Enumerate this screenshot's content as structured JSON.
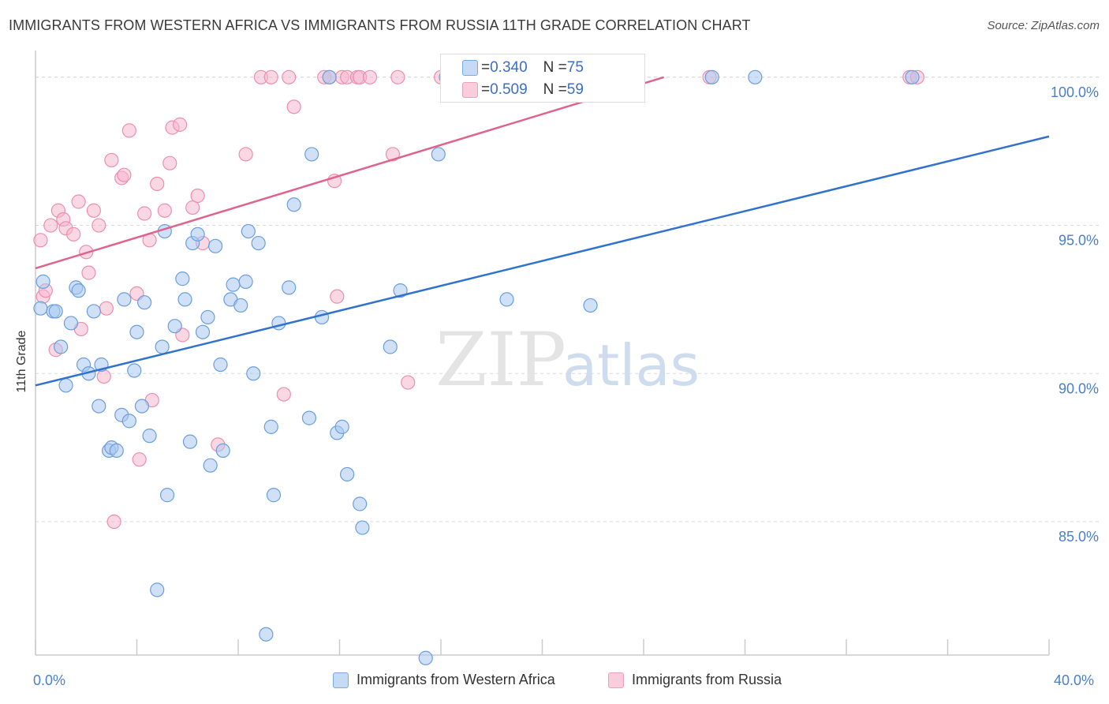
{
  "header": {
    "title": "IMMIGRANTS FROM WESTERN AFRICA VS IMMIGRANTS FROM RUSSIA 11TH GRADE CORRELATION CHART",
    "source": "Source: ZipAtlas.com"
  },
  "watermark": {
    "zip": "ZIP",
    "atlas": "atlas"
  },
  "colors": {
    "blue_fill": "#a9c8f0",
    "blue_stroke": "#6a9edf",
    "blue_line": "#2f72cf",
    "pink_fill": "#f6b8cc",
    "pink_stroke": "#ec8fae",
    "pink_line": "#e0638e",
    "grid": "#d8d8d8",
    "tick_label": "#4a7fc9"
  },
  "stats_legend": [
    {
      "r_label": "R = ",
      "r_value": "0.340",
      "n_label": "N = ",
      "n_value": "75"
    },
    {
      "r_label": "R = ",
      "r_value": "0.509",
      "n_label": "N = ",
      "n_value": "59"
    }
  ],
  "chart_data": {
    "type": "scatter",
    "ylabel": "11th Grade",
    "xlabel": "",
    "xlim": [
      0,
      40
    ],
    "ylim": [
      80.5,
      100.9
    ],
    "x_tick_labels": [
      "0.0%",
      "40.0%"
    ],
    "y_ticks": [
      85,
      90,
      95,
      100
    ],
    "y_tick_labels": [
      "85.0%",
      "90.0%",
      "95.0%",
      "100.0%"
    ],
    "grid": true,
    "legend_position": "bottom-center",
    "series": [
      {
        "name": "Immigrants from Western Africa",
        "trend": {
          "x": [
            0,
            40
          ],
          "y": [
            89.6,
            98.0
          ]
        },
        "points": [
          [
            0.2,
            92.2
          ],
          [
            0.3,
            93.1
          ],
          [
            0.7,
            92.1
          ],
          [
            0.8,
            92.1
          ],
          [
            1.0,
            90.9
          ],
          [
            1.2,
            89.6
          ],
          [
            1.4,
            91.7
          ],
          [
            1.6,
            92.9
          ],
          [
            1.7,
            92.8
          ],
          [
            1.9,
            90.3
          ],
          [
            2.1,
            90.0
          ],
          [
            2.3,
            92.1
          ],
          [
            2.5,
            88.9
          ],
          [
            2.6,
            90.3
          ],
          [
            2.9,
            87.4
          ],
          [
            3.0,
            87.5
          ],
          [
            3.2,
            87.4
          ],
          [
            3.4,
            88.6
          ],
          [
            3.5,
            92.5
          ],
          [
            3.7,
            88.4
          ],
          [
            3.9,
            90.1
          ],
          [
            4.0,
            91.4
          ],
          [
            4.2,
            88.9
          ],
          [
            4.3,
            92.4
          ],
          [
            4.5,
            87.9
          ],
          [
            4.8,
            82.7
          ],
          [
            5.0,
            90.9
          ],
          [
            5.1,
            94.8
          ],
          [
            5.2,
            85.9
          ],
          [
            5.5,
            91.6
          ],
          [
            5.8,
            93.2
          ],
          [
            5.9,
            92.5
          ],
          [
            6.1,
            87.7
          ],
          [
            6.2,
            94.4
          ],
          [
            6.4,
            94.7
          ],
          [
            6.6,
            91.4
          ],
          [
            6.8,
            91.9
          ],
          [
            6.9,
            86.9
          ],
          [
            7.1,
            94.3
          ],
          [
            7.3,
            90.3
          ],
          [
            7.4,
            87.4
          ],
          [
            7.7,
            92.5
          ],
          [
            7.8,
            93.0
          ],
          [
            8.1,
            92.3
          ],
          [
            8.3,
            93.1
          ],
          [
            8.4,
            94.8
          ],
          [
            8.6,
            90.0
          ],
          [
            8.8,
            94.4
          ],
          [
            9.1,
            81.2
          ],
          [
            9.3,
            88.2
          ],
          [
            9.4,
            85.9
          ],
          [
            9.6,
            91.7
          ],
          [
            10.0,
            92.9
          ],
          [
            10.2,
            95.7
          ],
          [
            10.8,
            88.5
          ],
          [
            10.9,
            97.4
          ],
          [
            11.3,
            91.9
          ],
          [
            11.6,
            100.0
          ],
          [
            11.9,
            88.0
          ],
          [
            12.1,
            88.2
          ],
          [
            12.3,
            86.6
          ],
          [
            12.8,
            85.6
          ],
          [
            12.9,
            84.8
          ],
          [
            14.0,
            90.9
          ],
          [
            14.4,
            92.8
          ],
          [
            15.4,
            80.4
          ],
          [
            15.9,
            97.4
          ],
          [
            16.2,
            100.0
          ],
          [
            16.6,
            100.0
          ],
          [
            18.6,
            92.5
          ],
          [
            18.9,
            100.0
          ],
          [
            21.9,
            92.3
          ],
          [
            26.7,
            100.0
          ],
          [
            28.4,
            100.0
          ],
          [
            34.6,
            100.0
          ]
        ]
      },
      {
        "name": "Immigrants from Russia",
        "trend": {
          "x": [
            0,
            24.8
          ],
          "y": [
            93.55,
            100.0
          ]
        },
        "points": [
          [
            0.2,
            94.5
          ],
          [
            0.3,
            92.6
          ],
          [
            0.4,
            92.8
          ],
          [
            0.6,
            95.0
          ],
          [
            0.8,
            90.8
          ],
          [
            0.9,
            95.5
          ],
          [
            1.1,
            95.2
          ],
          [
            1.2,
            94.9
          ],
          [
            1.5,
            94.7
          ],
          [
            1.7,
            95.8
          ],
          [
            1.8,
            91.5
          ],
          [
            2.0,
            94.1
          ],
          [
            2.1,
            93.4
          ],
          [
            2.3,
            95.5
          ],
          [
            2.5,
            95.0
          ],
          [
            2.7,
            89.9
          ],
          [
            2.8,
            92.2
          ],
          [
            3.0,
            97.2
          ],
          [
            3.1,
            85.0
          ],
          [
            3.4,
            96.6
          ],
          [
            3.5,
            96.7
          ],
          [
            3.7,
            98.2
          ],
          [
            4.0,
            92.7
          ],
          [
            4.1,
            87.1
          ],
          [
            4.3,
            95.4
          ],
          [
            4.5,
            94.5
          ],
          [
            4.6,
            89.1
          ],
          [
            4.8,
            96.4
          ],
          [
            5.1,
            95.5
          ],
          [
            5.3,
            97.1
          ],
          [
            5.4,
            98.3
          ],
          [
            5.7,
            98.4
          ],
          [
            5.8,
            91.3
          ],
          [
            6.2,
            95.6
          ],
          [
            6.4,
            96.0
          ],
          [
            6.6,
            94.4
          ],
          [
            7.2,
            87.6
          ],
          [
            8.3,
            97.4
          ],
          [
            8.9,
            100.0
          ],
          [
            9.3,
            100.0
          ],
          [
            9.8,
            89.3
          ],
          [
            10.0,
            100.0
          ],
          [
            10.2,
            99.0
          ],
          [
            11.4,
            100.0
          ],
          [
            11.6,
            100.0
          ],
          [
            11.8,
            96.5
          ],
          [
            11.9,
            92.6
          ],
          [
            12.1,
            100.0
          ],
          [
            12.3,
            100.0
          ],
          [
            12.7,
            100.0
          ],
          [
            12.8,
            100.0
          ],
          [
            13.2,
            100.0
          ],
          [
            14.1,
            97.4
          ],
          [
            14.3,
            100.0
          ],
          [
            14.7,
            89.7
          ],
          [
            16.0,
            100.0
          ],
          [
            26.6,
            100.0
          ],
          [
            34.5,
            100.0
          ],
          [
            34.8,
            100.0
          ]
        ]
      }
    ]
  }
}
